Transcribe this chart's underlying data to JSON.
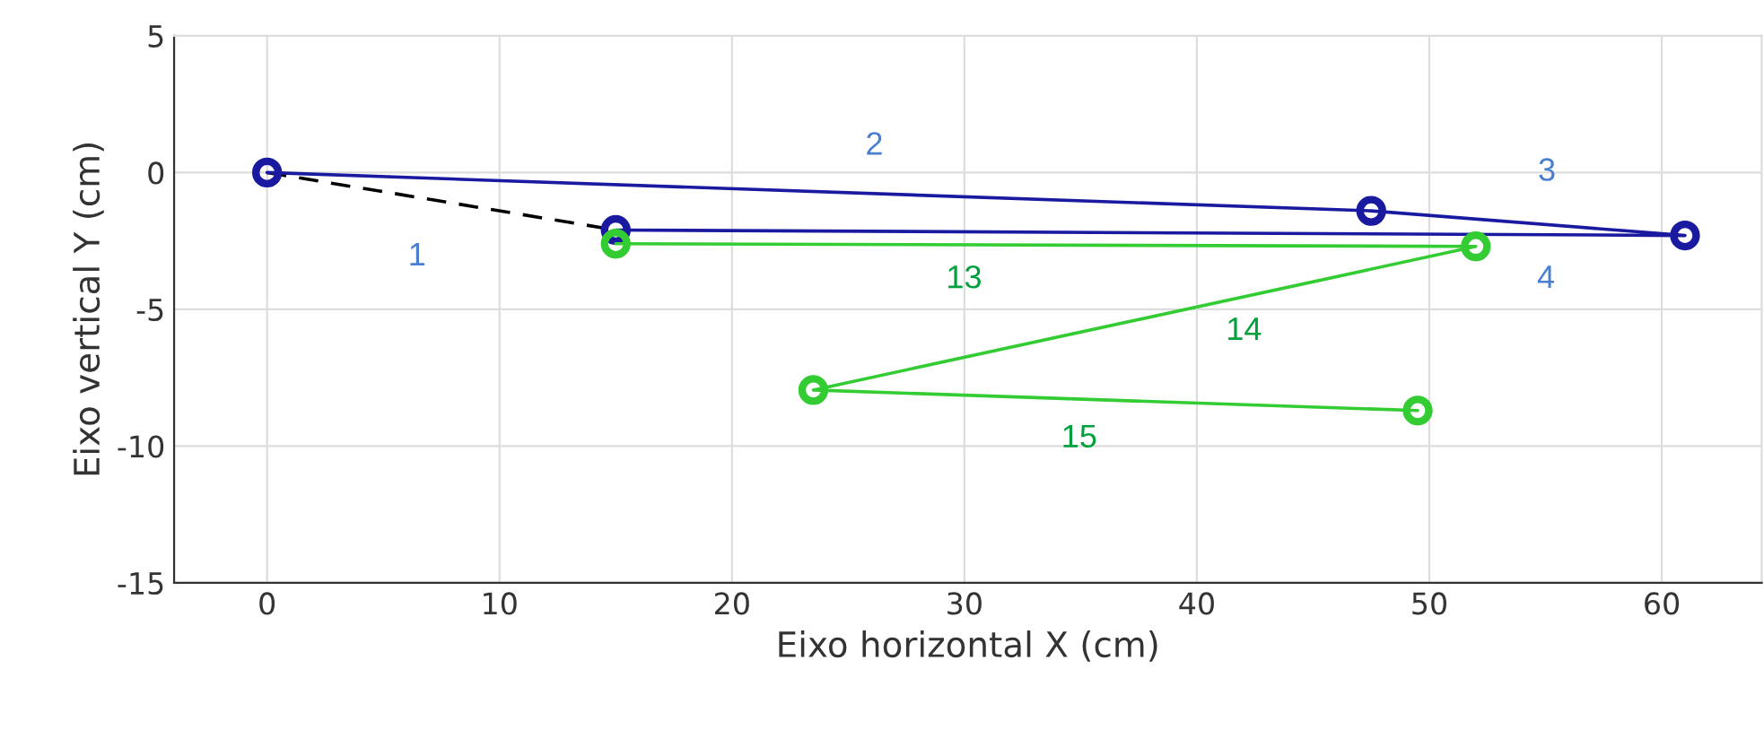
{
  "chart_data": {
    "type": "line",
    "xlabel": "Eixo horizontal X (cm)",
    "ylabel": "Eixo vertical Y (cm)",
    "series": [
      {
        "color": "#000000",
        "line_style": "dashed",
        "marker": "none",
        "x": [
          0,
          15
        ],
        "values": [
          0,
          -2.1
        ]
      },
      {
        "color": "#1a1aa0",
        "marker": "circle",
        "x": [
          0,
          47.5,
          61,
          15
        ],
        "values": [
          0,
          -1.4,
          -2.3,
          -2.1
        ]
      },
      {
        "color": "#33cc33",
        "marker": "circle",
        "x": [
          15,
          52,
          23.5,
          49.5
        ],
        "values": [
          -2.6,
          -2.7,
          -7.95,
          -8.7
        ]
      }
    ],
    "annotations": [
      "1",
      "2",
      "3",
      "4",
      "13",
      "14",
      "15"
    ],
    "xlim": [
      -4,
      64.3
    ],
    "ylim": [
      -15,
      5
    ],
    "xticks": [
      0,
      10,
      20,
      30,
      40,
      50,
      60
    ],
    "yticks": [
      5,
      0,
      -5,
      -10,
      -15
    ],
    "grid": true,
    "legend": false
  }
}
